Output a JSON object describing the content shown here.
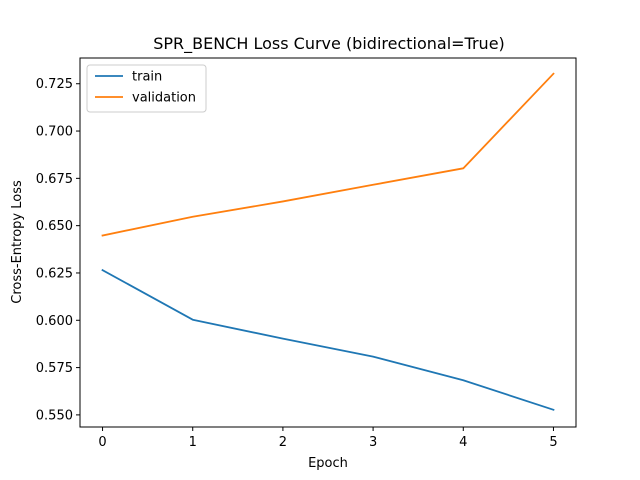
{
  "chart_data": {
    "type": "line",
    "title": "SPR_BENCH Loss Curve (bidirectional=True)",
    "xlabel": "Epoch",
    "ylabel": "Cross-Entropy Loss",
    "x": [
      0,
      1,
      2,
      3,
      4,
      5
    ],
    "xlim": [
      -0.25,
      5.25
    ],
    "ylim": [
      0.5436,
      0.7386
    ],
    "x_ticks": [
      0,
      1,
      2,
      3,
      4,
      5
    ],
    "y_ticks": [
      0.55,
      0.575,
      0.6,
      0.625,
      0.65,
      0.675,
      0.7,
      0.725
    ],
    "y_tick_labels": [
      "0.550",
      "0.575",
      "0.600",
      "0.625",
      "0.650",
      "0.675",
      "0.700",
      "0.725"
    ],
    "grid": false,
    "legend_position": "top-left",
    "series": [
      {
        "name": "train",
        "color": "#1f77b4",
        "values": [
          0.6265,
          0.6003,
          0.5903,
          0.5808,
          0.5683,
          0.5527
        ]
      },
      {
        "name": "validation",
        "color": "#ff7f0e",
        "values": [
          0.6448,
          0.6547,
          0.6628,
          0.6716,
          0.6803,
          0.7303
        ]
      }
    ]
  }
}
